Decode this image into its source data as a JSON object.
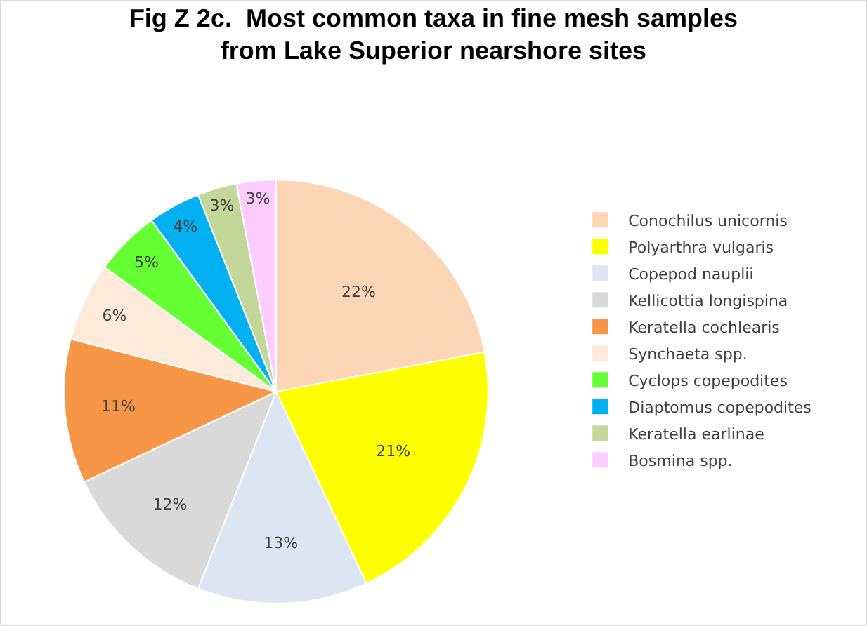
{
  "chart_data": {
    "type": "pie",
    "title": "Fig Z 2c.  Most common taxa in fine mesh samples\nfrom Lake Superior nearshore sites",
    "categories": [
      "Conochilus unicornis",
      "Polyarthra vulgaris",
      "Copepod nauplii",
      "Kellicottia longispina",
      "Keratella cochlearis",
      "Synchaeta spp.",
      "Cyclops copepodites",
      "Diaptomus copepodites",
      "Keratella earlinae",
      "Bosmina spp."
    ],
    "values": [
      22,
      21,
      13,
      12,
      11,
      6,
      5,
      4,
      3,
      3
    ],
    "value_labels": [
      "22%",
      "21%",
      "13%",
      "12%",
      "11%",
      "6%",
      "5%",
      "4%",
      "3%",
      "3%"
    ],
    "colors": [
      "#fcd5b5",
      "#ffff00",
      "#dce6f2",
      "#d9d9d9",
      "#f79646",
      "#fdeada",
      "#66ff33",
      "#00b0f0",
      "#c4d79b",
      "#ffccff"
    ],
    "legend": "right"
  }
}
